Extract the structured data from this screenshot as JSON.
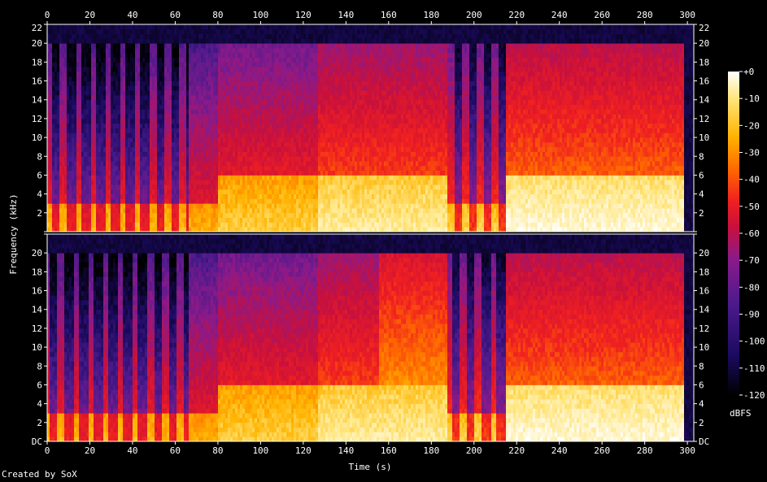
{
  "chart_data": {
    "type": "heatmap",
    "description_kind": "stereo spectrogram",
    "xlabel": "Time (s)",
    "ylabel": "Frequency (kHz)",
    "xlim": [
      0,
      303
    ],
    "ylim": [
      0,
      22
    ],
    "x_ticks": [
      0,
      20,
      40,
      60,
      80,
      100,
      120,
      140,
      160,
      180,
      200,
      220,
      240,
      260,
      280,
      300
    ],
    "y_ticks": [
      {
        "value": 0,
        "label": "DC"
      },
      {
        "value": 2,
        "label": "2"
      },
      {
        "value": 4,
        "label": "4"
      },
      {
        "value": 6,
        "label": "6"
      },
      {
        "value": 8,
        "label": "8"
      },
      {
        "value": 10,
        "label": "10"
      },
      {
        "value": 12,
        "label": "12"
      },
      {
        "value": 14,
        "label": "14"
      },
      {
        "value": 16,
        "label": "16"
      },
      {
        "value": 18,
        "label": "18"
      },
      {
        "value": 20,
        "label": "20"
      },
      {
        "value": 22,
        "label": "22"
      }
    ],
    "channels": 2,
    "colorbar": {
      "label": "dBFS",
      "ticks": [
        "+0",
        "-10",
        "-20",
        "-30",
        "-40",
        "-50",
        "-60",
        "-70",
        "-80",
        "-90",
        "-100",
        "-110",
        "-120"
      ],
      "range": [
        -120,
        0
      ]
    },
    "cutoff_khz": 20,
    "segments": [
      {
        "start": 0,
        "end": 66,
        "intensity": 0.45,
        "pulsed": true,
        "bright_top_khz": 3
      },
      {
        "start": 66,
        "end": 80,
        "intensity": 0.55,
        "pulsed": false,
        "bright_top_khz": 3
      },
      {
        "start": 80,
        "end": 127,
        "intensity": 0.62,
        "pulsed": false,
        "bright_top_khz": 6
      },
      {
        "start": 127,
        "end": 187,
        "intensity": 0.7,
        "pulsed": false,
        "bright_top_khz": 6
      },
      {
        "start": 187,
        "end": 215,
        "intensity": 0.5,
        "pulsed": true,
        "bright_top_khz": 3
      },
      {
        "start": 215,
        "end": 298,
        "intensity": 0.75,
        "pulsed": false,
        "bright_top_khz": 6
      }
    ]
  },
  "colormap": [
    "#000000",
    "#1a0a5e",
    "#4b1a8c",
    "#8a1a8a",
    "#c8103c",
    "#f02020",
    "#ff6a00",
    "#ffb400",
    "#ffe680",
    "#ffffff"
  ],
  "credit": "Created by SoX"
}
